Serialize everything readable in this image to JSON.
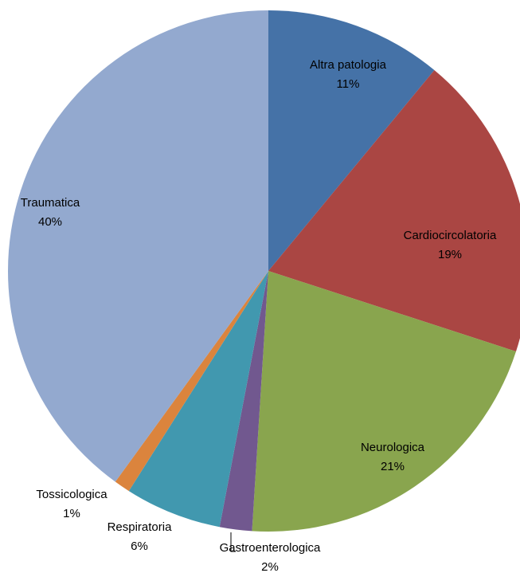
{
  "chart_data": {
    "type": "pie",
    "categories": [
      "Altra patologia",
      "Cardiocircolatoria",
      "Neurologica",
      "Gastroenterologica",
      "Respiratoria",
      "Tossicologica",
      "Traumatica"
    ],
    "values": [
      11,
      19,
      21,
      2,
      6,
      1,
      40
    ],
    "value_labels": [
      "11%",
      "19%",
      "21%",
      "2%",
      "6%",
      "1%",
      "40%"
    ],
    "colors": [
      "#4572a7",
      "#aa4643",
      "#89a54e",
      "#71588f",
      "#4198af",
      "#db843d",
      "#93a9cf"
    ]
  }
}
